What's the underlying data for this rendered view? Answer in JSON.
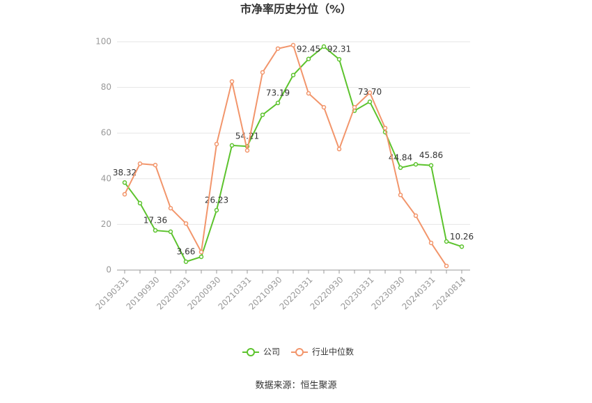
{
  "chart_data": {
    "type": "line",
    "title": "市净率历史分位（%）",
    "source": "数据来源：恒生聚源",
    "categories": [
      "20190331",
      null,
      "20190930",
      null,
      "20200331",
      null,
      "20200930",
      null,
      "20210331",
      null,
      "20210930",
      null,
      "20220331",
      null,
      "20220930",
      null,
      "20230331",
      null,
      "20230930",
      null,
      "20240331",
      null,
      "20240814"
    ],
    "series": [
      {
        "name": "公司",
        "color": "#5cc32d",
        "values": [
          38.32,
          29.3,
          17.36,
          16.8,
          3.66,
          5.8,
          26.23,
          54.6,
          54.21,
          68,
          73.19,
          85.4,
          92.45,
          97.9,
          92.31,
          69.8,
          73.7,
          60.4,
          44.84,
          46.3,
          45.86,
          12.5,
          10.26
        ],
        "value_labels": [
          "38.32",
          null,
          "17.36",
          null,
          "3.66",
          null,
          "26.23",
          null,
          "54.21",
          null,
          "73.19",
          null,
          "92.45",
          null,
          "92.31",
          null,
          "73.70",
          null,
          "44.84",
          null,
          "45.86",
          null,
          "10.26"
        ]
      },
      {
        "name": "行业中位数",
        "color": "#f2956b",
        "values": [
          33.2,
          46.6,
          46.0,
          27.1,
          20.4,
          7.9,
          55.2,
          82.6,
          52.4,
          86.6,
          97,
          98.5,
          77.4,
          71.3,
          53,
          71.3,
          77.7,
          62.2,
          32.9,
          23.8,
          11.9,
          1.8,
          null
        ]
      }
    ],
    "ylim": [
      0,
      100
    ],
    "yticks": [
      0,
      20,
      40,
      60,
      80,
      100
    ],
    "grid": true,
    "legend": "bottom"
  }
}
